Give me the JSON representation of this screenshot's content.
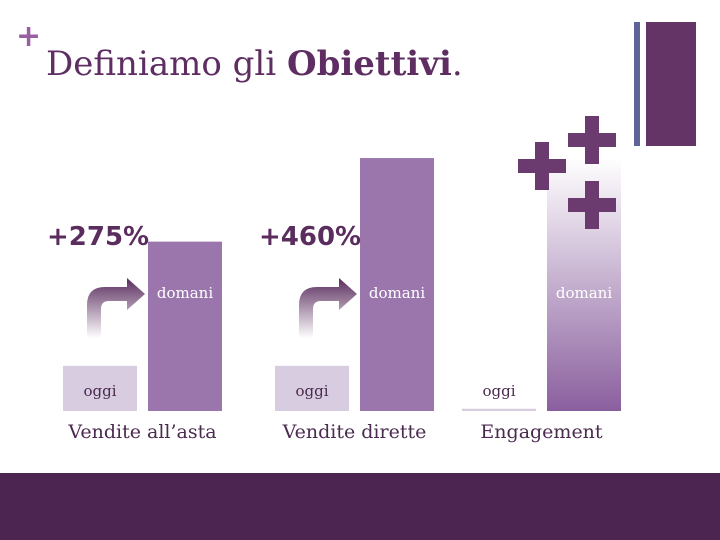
{
  "slide": {
    "title_prefix": "Definiamo gli ",
    "title_bold": "Obiettivi",
    "title_suffix": "."
  },
  "chart_data": {
    "type": "bar",
    "categories": [
      "Vendite all’asta",
      "Vendite dirette",
      "Engagement"
    ],
    "series": [
      {
        "name": "oggi",
        "values": [
          100,
          100,
          5
        ]
      },
      {
        "name": "domani",
        "values": [
          375,
          560,
          560
        ]
      }
    ],
    "annotations": [
      "+275%",
      "+460%",
      ""
    ],
    "ylim": [
      0,
      600
    ],
    "grid": false,
    "colors": {
      "oggi": "#d8cce0",
      "domani": "#9a76ad",
      "engagement_gradient_top": "#ffffff",
      "engagement_gradient_bottom": "#8a5f9e",
      "arrow": "#5a2d5e",
      "plus": "#6b3a6e"
    }
  }
}
